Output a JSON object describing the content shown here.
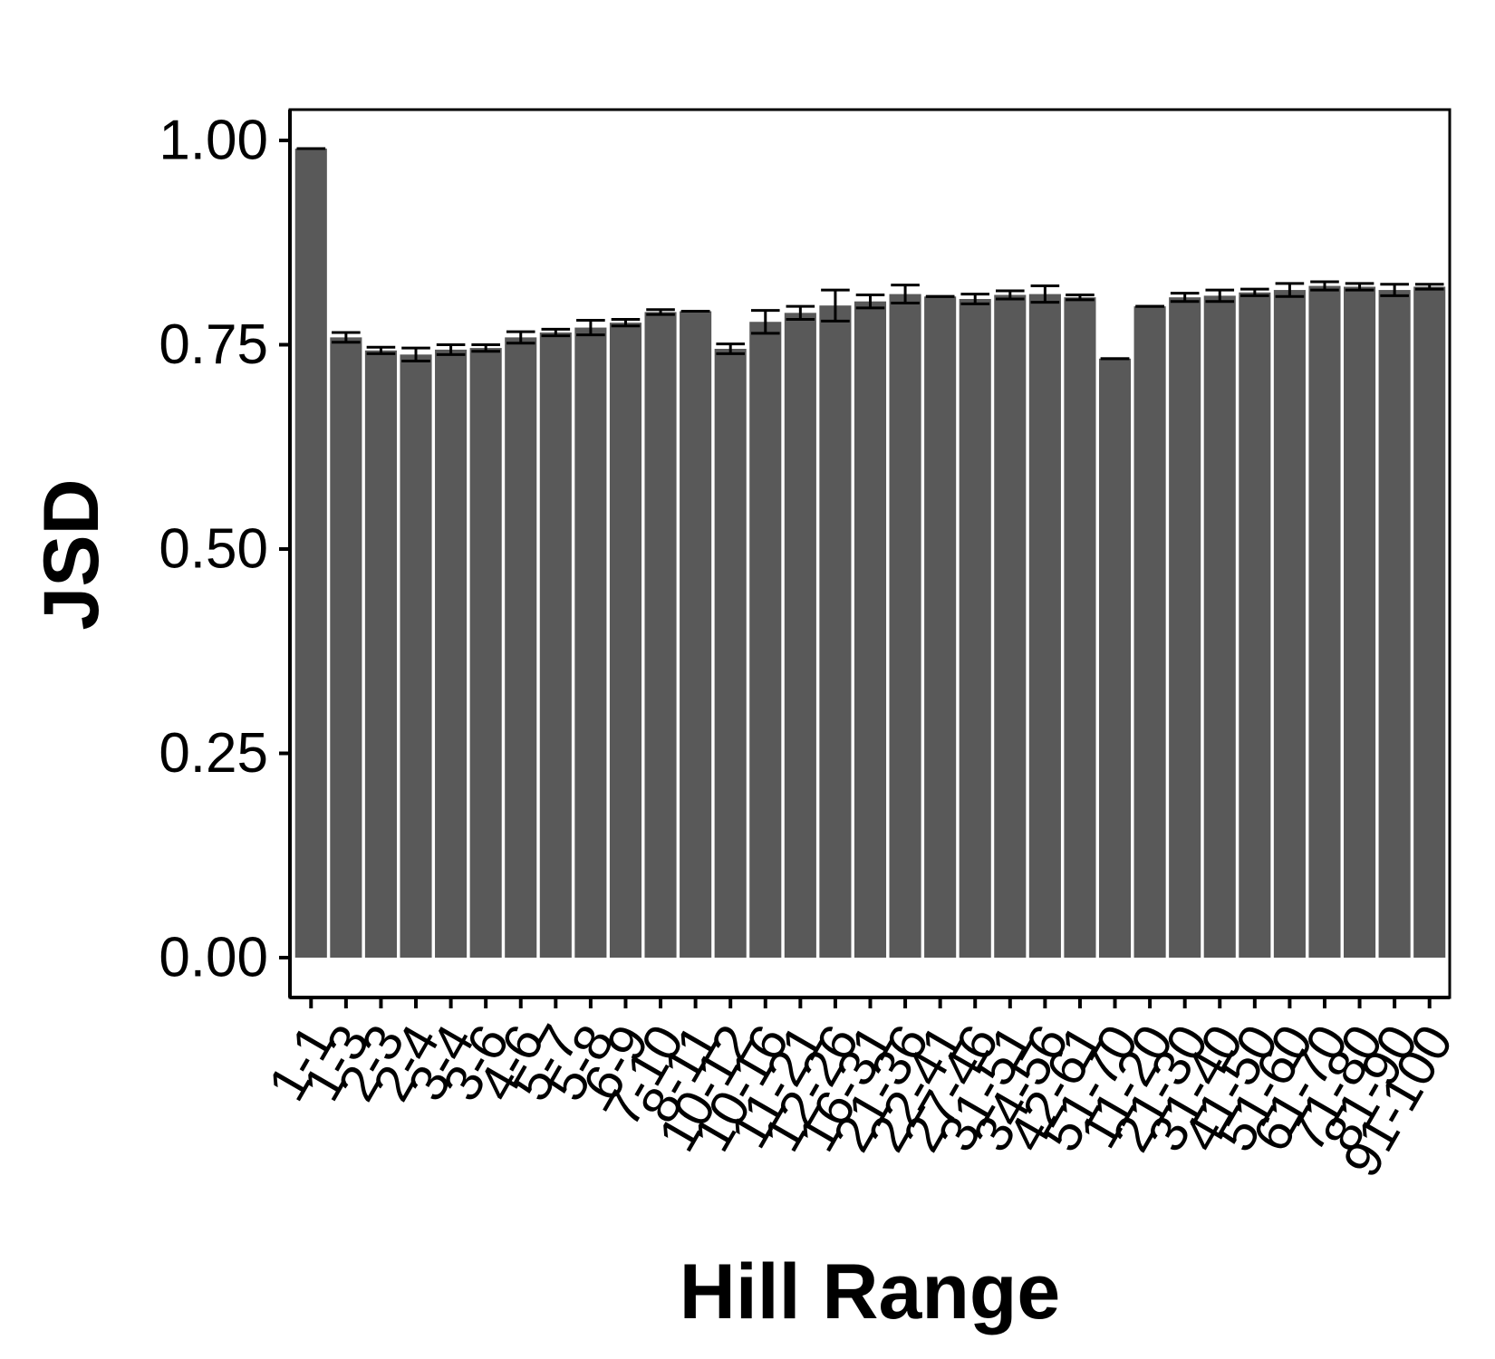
{
  "chart_data": {
    "type": "bar",
    "title": "",
    "xlabel": "Hill Range",
    "ylabel": "JSD",
    "ylim": [
      -0.05,
      1.04
    ],
    "yticks": [
      0.0,
      0.25,
      0.5,
      0.75,
      1.0
    ],
    "ytick_labels": [
      "0.00",
      "0.25",
      "0.50",
      "0.75",
      "1.00"
    ],
    "grid": false,
    "legend": "none",
    "bar_color": "#595959",
    "error_bar_color": "#000000",
    "categories": [
      "1-1",
      "1-3",
      "2-3",
      "2-4",
      "3-4",
      "3-6",
      "4-6",
      "5-7",
      "5-8",
      "6-9",
      "7-10",
      "8-11",
      "10-12",
      "10-16",
      "11-21",
      "12-26",
      "16-31",
      "21-36",
      "22-41",
      "27-46",
      "31-51",
      "34-56",
      "42-61",
      "51-70",
      "11-20",
      "21-30",
      "31-40",
      "41-50",
      "51-60",
      "61-70",
      "71-80",
      "81-90",
      "91-100"
    ],
    "values": [
      0.99,
      0.759,
      0.743,
      0.738,
      0.744,
      0.746,
      0.759,
      0.765,
      0.771,
      0.777,
      0.79,
      0.791,
      0.745,
      0.778,
      0.789,
      0.798,
      0.803,
      0.812,
      0.809,
      0.806,
      0.811,
      0.812,
      0.808,
      0.733,
      0.797,
      0.808,
      0.81,
      0.814,
      0.817,
      0.822,
      0.821,
      0.817,
      0.821
    ],
    "errors": [
      0.0,
      0.006,
      0.004,
      0.008,
      0.006,
      0.004,
      0.007,
      0.004,
      0.009,
      0.004,
      0.003,
      0.0,
      0.006,
      0.014,
      0.008,
      0.019,
      0.008,
      0.011,
      0.0,
      0.006,
      0.005,
      0.01,
      0.003,
      0.0,
      0.0,
      0.005,
      0.007,
      0.004,
      0.008,
      0.005,
      0.004,
      0.007,
      0.003
    ]
  }
}
